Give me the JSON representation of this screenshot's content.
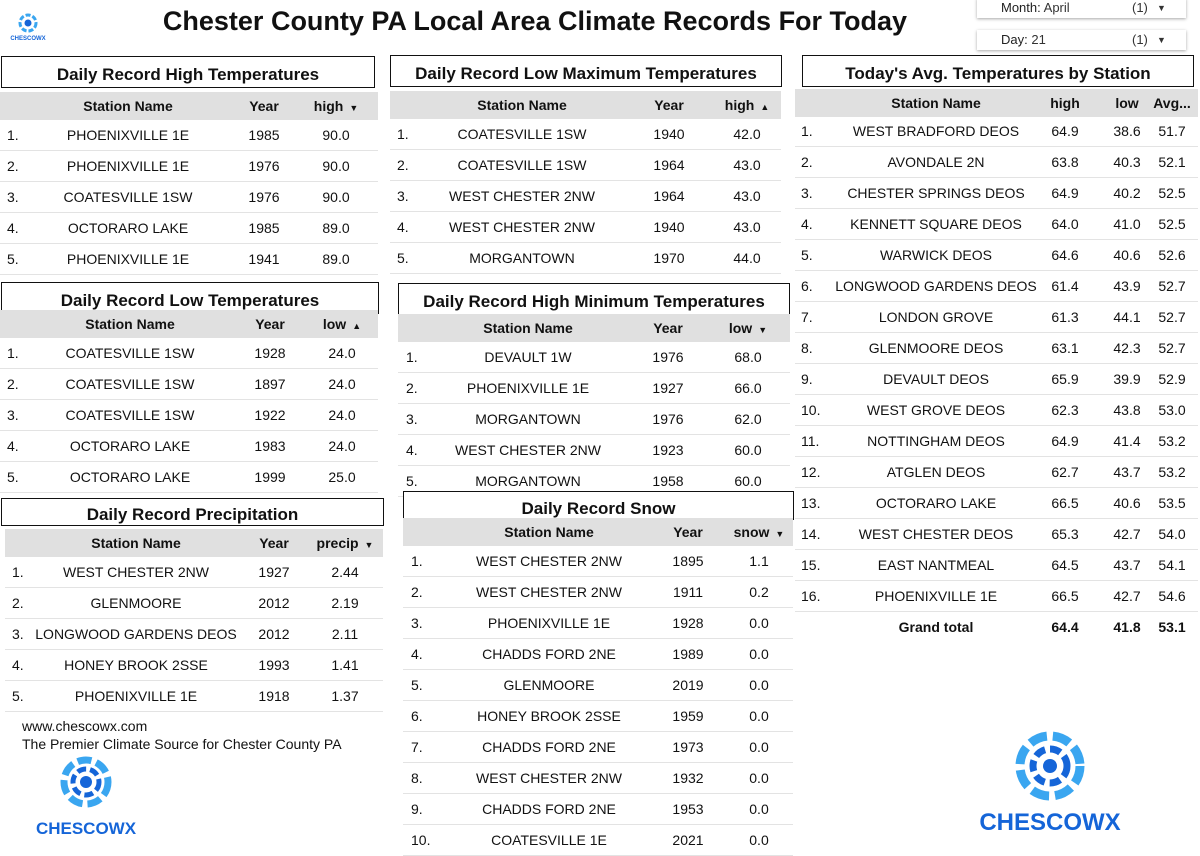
{
  "header": {
    "title": "Chester County PA Local Area Climate Records For Today",
    "logo_text": "CHESCOWX"
  },
  "filters": [
    {
      "label": "Month:",
      "value": "April",
      "count": "(1)"
    },
    {
      "label": "Day:",
      "value": "21",
      "count": "(1)"
    }
  ],
  "colors": {
    "header_bg": "#e0e0e0",
    "logo_blue": "#1565d8",
    "logo_light": "#3aa6f0"
  },
  "tables": {
    "record_high": {
      "title": "Daily Record High Temperatures",
      "columns": [
        "Station Name",
        "Year",
        "high"
      ],
      "sort": "desc",
      "rows": [
        [
          "1.",
          "PHOENIXVILLE 1E",
          "1985",
          "90.0"
        ],
        [
          "2.",
          "PHOENIXVILLE 1E",
          "1976",
          "90.0"
        ],
        [
          "3.",
          "COATESVILLE 1SW",
          "1976",
          "90.0"
        ],
        [
          "4.",
          "OCTORARO LAKE",
          "1985",
          "89.0"
        ],
        [
          "5.",
          "PHOENIXVILLE 1E",
          "1941",
          "89.0"
        ]
      ]
    },
    "record_low_max": {
      "title": "Daily Record Low Maximum Temperatures",
      "columns": [
        "Station Name",
        "Year",
        "high"
      ],
      "sort": "asc",
      "rows": [
        [
          "1.",
          "COATESVILLE 1SW",
          "1940",
          "42.0"
        ],
        [
          "2.",
          "COATESVILLE 1SW",
          "1964",
          "43.0"
        ],
        [
          "3.",
          "WEST CHESTER 2NW",
          "1964",
          "43.0"
        ],
        [
          "4.",
          "WEST CHESTER 2NW",
          "1940",
          "43.0"
        ],
        [
          "5.",
          "MORGANTOWN",
          "1970",
          "44.0"
        ]
      ]
    },
    "avg_by_station": {
      "title": "Today's Avg. Temperatures by Station",
      "columns": [
        "Station Name",
        "high",
        "low",
        "Avg..."
      ],
      "sort": "",
      "rows": [
        [
          "1.",
          "WEST BRADFORD DEOS",
          "64.9",
          "38.6",
          "51.7"
        ],
        [
          "2.",
          "AVONDALE 2N",
          "63.8",
          "40.3",
          "52.1"
        ],
        [
          "3.",
          "CHESTER SPRINGS DEOS",
          "64.9",
          "40.2",
          "52.5"
        ],
        [
          "4.",
          "KENNETT SQUARE DEOS",
          "64.0",
          "41.0",
          "52.5"
        ],
        [
          "5.",
          "WARWICK DEOS",
          "64.6",
          "40.6",
          "52.6"
        ],
        [
          "6.",
          "LONGWOOD GARDENS DEOS",
          "61.4",
          "43.9",
          "52.7"
        ],
        [
          "7.",
          "LONDON GROVE",
          "61.3",
          "44.1",
          "52.7"
        ],
        [
          "8.",
          "GLENMOORE DEOS",
          "63.1",
          "42.3",
          "52.7"
        ],
        [
          "9.",
          "DEVAULT DEOS",
          "65.9",
          "39.9",
          "52.9"
        ],
        [
          "10.",
          "WEST GROVE DEOS",
          "62.3",
          "43.8",
          "53.0"
        ],
        [
          "11.",
          "NOTTINGHAM DEOS",
          "64.9",
          "41.4",
          "53.2"
        ],
        [
          "12.",
          "ATGLEN DEOS",
          "62.7",
          "43.7",
          "53.2"
        ],
        [
          "13.",
          "OCTORARO LAKE",
          "66.5",
          "40.6",
          "53.5"
        ],
        [
          "14.",
          "WEST CHESTER DEOS",
          "65.3",
          "42.7",
          "54.0"
        ],
        [
          "15.",
          "EAST NANTMEAL",
          "64.5",
          "43.7",
          "54.1"
        ],
        [
          "16.",
          "PHOENIXVILLE 1E",
          "66.5",
          "42.7",
          "54.6"
        ]
      ],
      "grand_total": [
        "",
        "Grand total",
        "64.4",
        "41.8",
        "53.1"
      ]
    },
    "record_low": {
      "title": "Daily Record Low Temperatures",
      "columns": [
        "Station Name",
        "Year",
        "low"
      ],
      "sort": "asc",
      "rows": [
        [
          "1.",
          "COATESVILLE 1SW",
          "1928",
          "24.0"
        ],
        [
          "2.",
          "COATESVILLE 1SW",
          "1897",
          "24.0"
        ],
        [
          "3.",
          "COATESVILLE 1SW",
          "1922",
          "24.0"
        ],
        [
          "4.",
          "OCTORARO LAKE",
          "1983",
          "24.0"
        ],
        [
          "5.",
          "OCTORARO LAKE",
          "1999",
          "25.0"
        ]
      ]
    },
    "record_high_min": {
      "title": "Daily Record High Minimum Temperatures",
      "columns": [
        "Station Name",
        "Year",
        "low"
      ],
      "sort": "desc",
      "rows": [
        [
          "1.",
          "DEVAULT 1W",
          "1976",
          "68.0"
        ],
        [
          "2.",
          "PHOENIXVILLE 1E",
          "1927",
          "66.0"
        ],
        [
          "3.",
          "MORGANTOWN",
          "1976",
          "62.0"
        ],
        [
          "4.",
          "WEST CHESTER 2NW",
          "1923",
          "60.0"
        ],
        [
          "5.",
          "MORGANTOWN",
          "1958",
          "60.0"
        ]
      ]
    },
    "record_precip": {
      "title": "Daily Record Precipitation",
      "columns": [
        "Station Name",
        "Year",
        "precip"
      ],
      "sort": "desc",
      "rows": [
        [
          "1.",
          "WEST CHESTER 2NW",
          "1927",
          "2.44"
        ],
        [
          "2.",
          "GLENMOORE",
          "2012",
          "2.19"
        ],
        [
          "3.",
          "LONGWOOD GARDENS DEOS",
          "2012",
          "2.11"
        ],
        [
          "4.",
          "HONEY BROOK 2SSE",
          "1993",
          "1.41"
        ],
        [
          "5.",
          "PHOENIXVILLE 1E",
          "1918",
          "1.37"
        ]
      ]
    },
    "record_snow": {
      "title": "Daily Record Snow",
      "columns": [
        "Station Name",
        "Year",
        "snow"
      ],
      "sort": "desc",
      "rows": [
        [
          "1.",
          "WEST CHESTER 2NW",
          "1895",
          "1.1"
        ],
        [
          "2.",
          "WEST CHESTER 2NW",
          "1911",
          "0.2"
        ],
        [
          "3.",
          "PHOENIXVILLE 1E",
          "1928",
          "0.0"
        ],
        [
          "4.",
          "CHADDS FORD 2NE",
          "1989",
          "0.0"
        ],
        [
          "5.",
          "GLENMOORE",
          "2019",
          "0.0"
        ],
        [
          "6.",
          "HONEY BROOK 2SSE",
          "1959",
          "0.0"
        ],
        [
          "7.",
          "CHADDS FORD 2NE",
          "1973",
          "0.0"
        ],
        [
          "8.",
          "WEST CHESTER 2NW",
          "1932",
          "0.0"
        ],
        [
          "9.",
          "CHADDS FORD 2NE",
          "1953",
          "0.0"
        ],
        [
          "10.",
          "COATESVILLE 1E",
          "2021",
          "0.0"
        ]
      ]
    }
  },
  "footer": {
    "website": "www.chescowx.com",
    "tagline": "The Premier Climate Source for Chester County PA"
  }
}
